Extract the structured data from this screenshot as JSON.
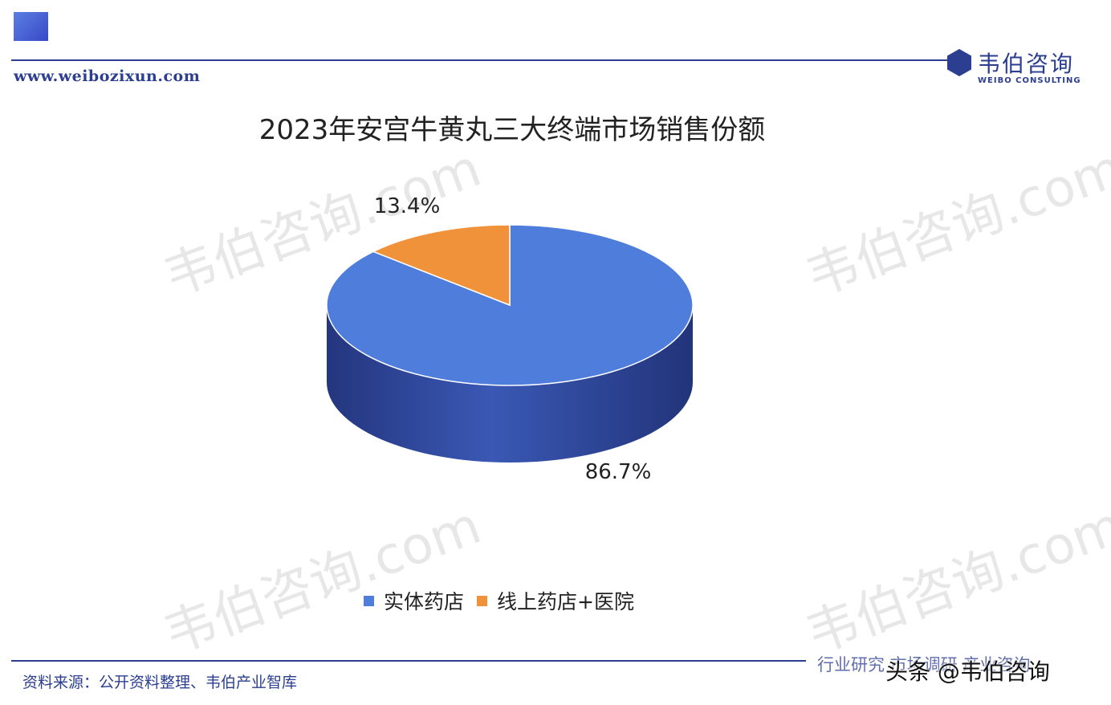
{
  "header": {
    "website": "www.weibozixun.com",
    "logo_name": "韦伯咨询",
    "logo_sub": "WEIBO CONSULTING"
  },
  "watermark": "韦伯咨询.com",
  "chart_data": {
    "type": "pie",
    "title": "2023年安宫牛黄丸三大终端市场销售份额",
    "slices": [
      {
        "name": "实体药店",
        "value": 86.7,
        "label": "86.7%",
        "color": "#4f7ddb"
      },
      {
        "name": "线上药店+医院",
        "value": 13.4,
        "label": "13.4%",
        "color": "#f0923a"
      }
    ],
    "legend_position": "bottom"
  },
  "footer": {
    "source": "资料来源：公开资料整理、韦伯产业智库",
    "tagline": "行业研究  市场调研  产业咨询",
    "platform_mark": "头条 @韦伯咨询"
  }
}
